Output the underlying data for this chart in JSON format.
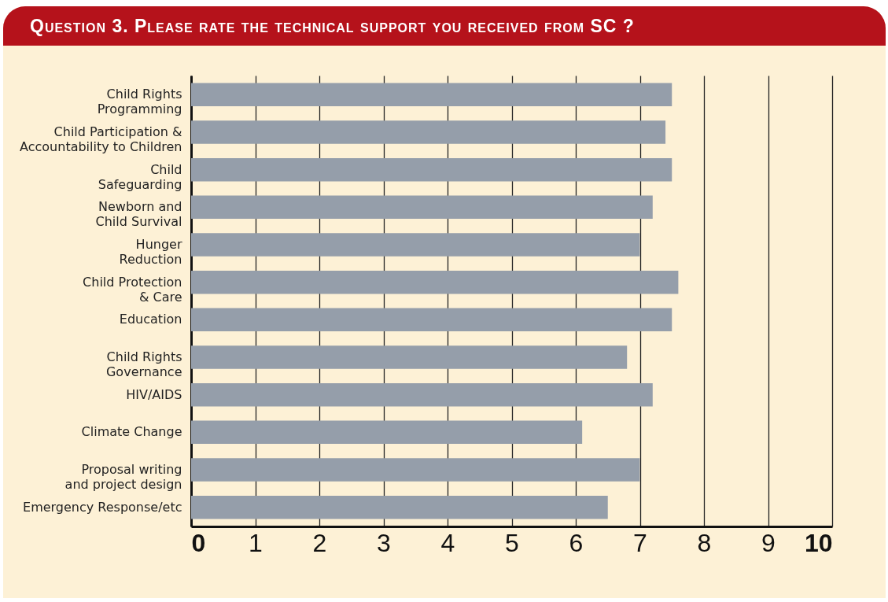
{
  "chart_data": {
    "type": "bar",
    "orientation": "horizontal",
    "title": "Question 3. Please rate the technical support you received from SC ?",
    "categories": [
      "Child Rights\nProgramming",
      "Child Participation &\nAccountability to Children",
      "Child\nSafeguarding",
      "Newborn and\nChild Survival",
      "Hunger\nReduction",
      "Child Protection\n& Care",
      "Education",
      "Child Rights\nGovernance",
      "HIV/AIDS",
      "Climate Change",
      "Proposal writing\nand project design",
      "Emergency Response/etc"
    ],
    "values": [
      7.5,
      7.4,
      7.5,
      7.2,
      7.0,
      7.6,
      7.5,
      6.8,
      7.2,
      6.1,
      7.0,
      6.5
    ],
    "color": "#959eaa",
    "xlim": [
      0,
      10
    ],
    "xticks": [
      0,
      1,
      2,
      3,
      4,
      5,
      6,
      7,
      8,
      9,
      10
    ],
    "grid": "x"
  }
}
